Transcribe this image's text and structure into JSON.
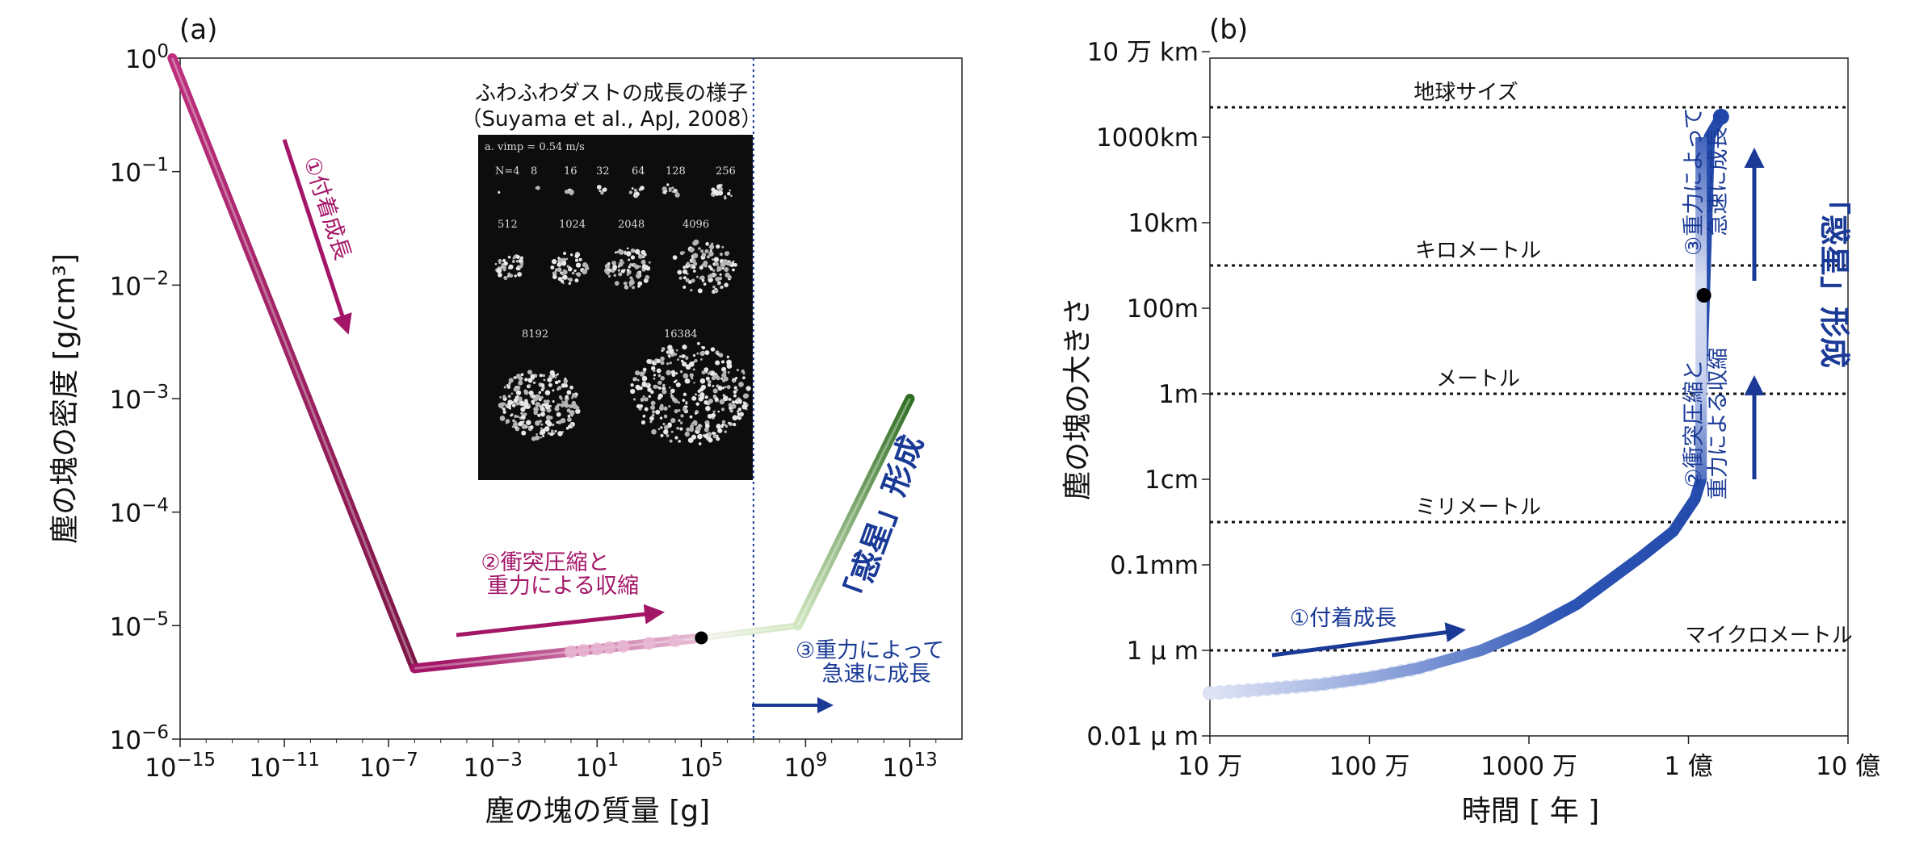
{
  "panels": [
    {
      "id": "a",
      "label": "(a)"
    },
    {
      "id": "b",
      "label": "(b)"
    }
  ],
  "chart_data": [
    {
      "panel": "(a)",
      "type": "line",
      "xlabel": "塵の塊の質量 [g]",
      "ylabel": "塵の塊の密度 [g/cm³]",
      "xscale": "log",
      "yscale": "log",
      "xlim": [
        1e-15,
        1000000000000000.0
      ],
      "ylim": [
        1e-06,
        1
      ],
      "xticks": [
        1e-15,
        1e-11,
        1e-07,
        0.001,
        10,
        100000.0,
        1000000000.0,
        10000000000000.0
      ],
      "xtick_labels": [
        "10^−15",
        "10^−11",
        "10^−7",
        "10^−3",
        "10^1",
        "10^5",
        "10^9",
        "10^13"
      ],
      "yticks": [
        1e-06,
        1e-05,
        0.0001,
        0.001,
        0.01,
        0.1,
        1
      ],
      "ytick_labels": [
        "10^−6",
        "10^−5",
        "10^−4",
        "10^−3",
        "10^−2",
        "10^−1",
        "10^0"
      ],
      "series": [
        {
          "color": "#a31567",
          "points": [
            [
              5e-16,
              1.0
            ],
            [
              1e-06,
              4.2e-06
            ]
          ]
        },
        {
          "color": "#c94a8e",
          "points": [
            [
              1e-06,
              4.2e-06
            ],
            [
              100000.0,
              7.8e-06
            ]
          ]
        },
        {
          "color": "#b8d9a0",
          "points": [
            [
              100000.0,
              7.8e-06
            ],
            [
              500000000.0,
              1e-05
            ]
          ]
        },
        {
          "color": "#3c7a2c",
          "points": [
            [
              500000000.0,
              1e-05
            ],
            [
              10000000000000.0,
              0.001
            ]
          ]
        }
      ],
      "marker": {
        "x": 100000.0,
        "y": 7.8e-06,
        "color": "#000000"
      },
      "vline_x": 10000000.0,
      "annotations": {
        "stage1": "①付着成長",
        "stage2_line1": "②衝突圧縮と",
        "stage2_line2": "重力による収縮",
        "stage3_line1": "③重力によって",
        "stage3_line2": "急速に成長",
        "planetesimal": "「惑星」形成"
      },
      "inset": {
        "title": "ふわふわダストの成長の様子",
        "reference": "（Suyama et al., ApJ, 2008）",
        "header": "a. vimp = 0.54 m/s",
        "row1": [
          "N=4",
          "8",
          "16",
          "32",
          "64",
          "128",
          "256"
        ],
        "row2": [
          "512",
          "1024",
          "2048",
          "4096"
        ],
        "row3": [
          "8192",
          "16384"
        ]
      }
    },
    {
      "panel": "(b)",
      "type": "scatter",
      "xlabel": "時間 [ 年 ]",
      "ylabel": "塵の塊の大きさ",
      "xscale": "log",
      "yscale": "log",
      "xticks": [
        "10 万",
        "100 万",
        "1000 万",
        "1 億",
        "10 億"
      ],
      "xtick_values_years": [
        100000.0,
        1000000.0,
        10000000.0,
        100000000.0,
        1000000000.0
      ],
      "yticks": [
        "0.01 μ m",
        "1 μ m",
        "0.1mm",
        "1cm",
        "1m",
        "100m",
        "10km",
        "1000km",
        "10 万 km"
      ],
      "ytick_values_m": [
        1e-08,
        1e-06,
        0.0001,
        0.01,
        1,
        100,
        10000.0,
        1000000.0,
        100000000.0
      ],
      "reference_lines": [
        {
          "label": "地球サイズ",
          "y_m": 5000000.0
        },
        {
          "label": "キロメートル",
          "y_m": 1000
        },
        {
          "label": "メートル",
          "y_m": 1
        },
        {
          "label": "ミリメートル",
          "y_m": 0.001
        },
        {
          "label": "マイクロメートル",
          "y_m": 1e-06
        }
      ],
      "series": [
        {
          "color": "#1f46a8",
          "x": [
            100000.0,
            200000.0,
            500000.0,
            1000000.0,
            2000000.0,
            5000000.0,
            10000000.0,
            20000000.0,
            50000000.0,
            80000000.0,
            110000000.0,
            120000000.0,
            120000000.0,
            125000000.0,
            130000000.0,
            135000000.0,
            160000000.0
          ],
          "y": [
            1e-07,
            1.2e-07,
            1.6e-07,
            2.3e-07,
            3.8e-07,
            1e-06,
            3e-06,
            1.2e-05,
            0.00015,
            0.0006,
            0.0035,
            0.01,
            1.0,
            100,
            10000.0,
            1000000.0,
            3000000.0
          ]
        }
      ],
      "marker": {
        "x": 125000000.0,
        "y": 200,
        "color": "#000000"
      },
      "annotations": {
        "stage1": "①付着成長",
        "stage2_line1": "②衝突圧縮と",
        "stage2_line2": "重力による収縮",
        "stage3_line1": "③重力によって",
        "stage3_line2": "急速に成長",
        "planetesimal": "「惑星」形成"
      }
    }
  ]
}
